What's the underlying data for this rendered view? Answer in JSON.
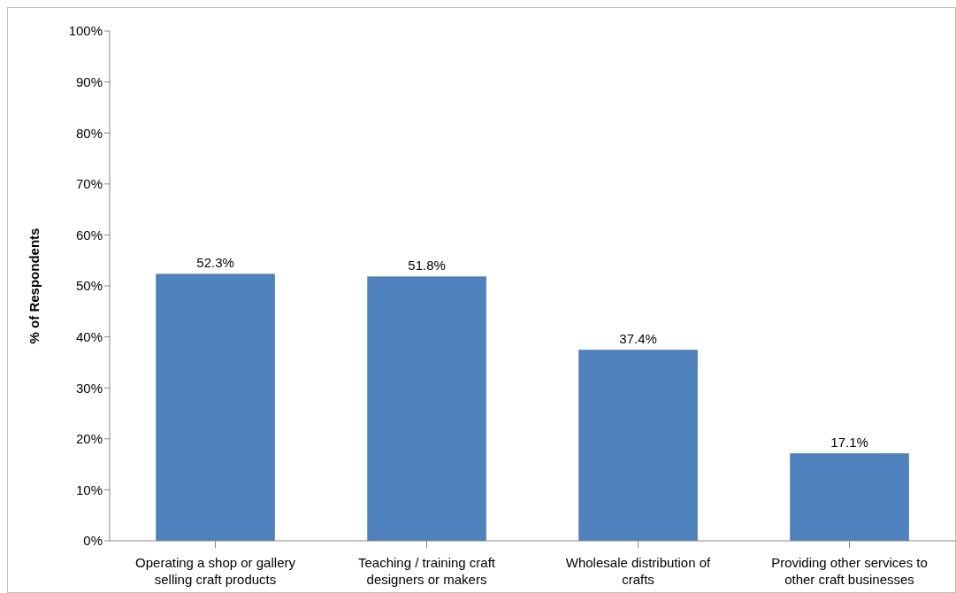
{
  "chart_data": {
    "type": "bar",
    "ylabel": "% of Respondents",
    "categories": [
      "Operating a shop or gallery selling craft products",
      "Teaching / training craft designers or makers",
      "Wholesale distribution of crafts",
      "Providing other services to other craft businesses"
    ],
    "values": [
      52.3,
      51.8,
      37.4,
      17.1
    ],
    "value_labels": [
      "52.3%",
      "51.8%",
      "37.4%",
      "17.1%"
    ],
    "color": "#4f81bd",
    "ylim": [
      0,
      100
    ],
    "yticks": [
      {
        "value": 0,
        "label": "0%"
      },
      {
        "value": 10,
        "label": "10%"
      },
      {
        "value": 20,
        "label": "20%"
      },
      {
        "value": 30,
        "label": "30%"
      },
      {
        "value": 40,
        "label": "40%"
      },
      {
        "value": 50,
        "label": "50%"
      },
      {
        "value": 60,
        "label": "60%"
      },
      {
        "value": 70,
        "label": "70%"
      },
      {
        "value": 80,
        "label": "80%"
      },
      {
        "value": 90,
        "label": "90%"
      },
      {
        "value": 100,
        "label": "100%"
      }
    ],
    "grid": false
  }
}
